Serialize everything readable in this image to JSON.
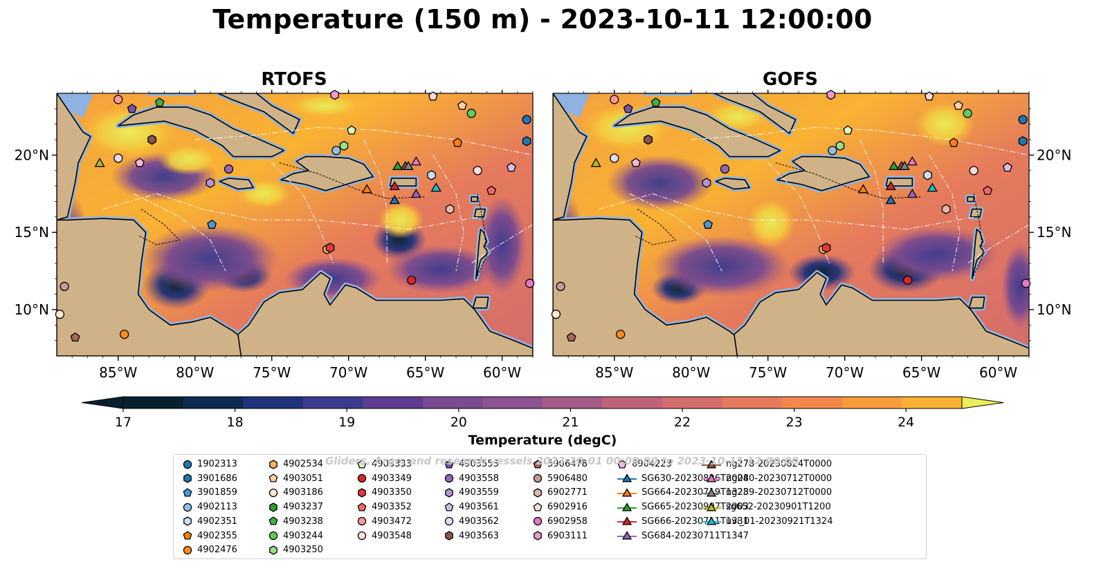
{
  "title": "Temperature (150 m) - 2023-10-11 12:00:00",
  "panels": [
    {
      "name": "RTOFS"
    },
    {
      "name": "GOFS"
    }
  ],
  "axes": {
    "lon_ticks": [
      "85°W",
      "80°W",
      "75°W",
      "70°W",
      "65°W",
      "60°W"
    ],
    "lat_ticks": [
      "20°N",
      "15°N",
      "10°N"
    ],
    "extent": {
      "lon": [
        -89,
        -58
      ],
      "lat": [
        7,
        24
      ]
    }
  },
  "colorbar": {
    "label": "Temperature (degC)",
    "ticks": [
      "17",
      "18",
      "19",
      "20",
      "21",
      "22",
      "23",
      "24"
    ],
    "range": [
      17,
      24.5
    ],
    "colors": [
      "#06202e",
      "#0d2a52",
      "#1f327a",
      "#3a3a8e",
      "#5e3d91",
      "#784a8f",
      "#8d5290",
      "#a55a86",
      "#bf637a",
      "#d36d6b",
      "#e57a5c",
      "#f2884b",
      "#f89d3c",
      "#f9b233",
      "#f3c93e",
      "#e8ef5a"
    ]
  },
  "watermark": "Gliders, Argo, and research vessels 2023-10-01 00:00:00 to 2023-10-11 12:00:00",
  "legend": [
    {
      "label": "1902313",
      "marker": "circle",
      "color": "#1f77b4"
    },
    {
      "label": "3901686",
      "marker": "hexagon",
      "color": "#1f77b4"
    },
    {
      "label": "3901859",
      "marker": "pentagon",
      "color": "#4a9ad4"
    },
    {
      "label": "4902113",
      "marker": "circle",
      "color": "#8ec1e8"
    },
    {
      "label": "4902351",
      "marker": "hexagon",
      "color": "#c6e0f5"
    },
    {
      "label": "4902355",
      "marker": "pentagon",
      "color": "#ff7f0e"
    },
    {
      "label": "4902476",
      "marker": "circle",
      "color": "#ff8c1a"
    },
    {
      "label": "4902534",
      "marker": "hexagon",
      "color": "#ffae5c"
    },
    {
      "label": "4903051",
      "marker": "pentagon",
      "color": "#ffd1a3"
    },
    {
      "label": "4903186",
      "marker": "circle",
      "color": "#ffe6cc"
    },
    {
      "label": "4903237",
      "marker": "hexagon",
      "color": "#2ca02c"
    },
    {
      "label": "4903238",
      "marker": "pentagon",
      "color": "#3cb043"
    },
    {
      "label": "4903244",
      "marker": "circle",
      "color": "#5ccf5c"
    },
    {
      "label": "4903250",
      "marker": "hexagon",
      "color": "#98df8a"
    },
    {
      "label": "4903333",
      "marker": "pentagon",
      "color": "#d8f5c8"
    },
    {
      "label": "4903349",
      "marker": "circle",
      "color": "#d62728"
    },
    {
      "label": "4903350",
      "marker": "hexagon",
      "color": "#e0393a"
    },
    {
      "label": "4903352",
      "marker": "pentagon",
      "color": "#ee6a6a"
    },
    {
      "label": "4903472",
      "marker": "circle",
      "color": "#ff9896"
    },
    {
      "label": "4903548",
      "marker": "circle",
      "color": "#ffdcdc"
    },
    {
      "label": "4903553",
      "marker": "pentagon",
      "color": "#7b52ab"
    },
    {
      "label": "4903558",
      "marker": "circle",
      "color": "#9467bd"
    },
    {
      "label": "4903559",
      "marker": "hexagon",
      "color": "#b296d6"
    },
    {
      "label": "4903561",
      "marker": "pentagon",
      "color": "#d1bdea"
    },
    {
      "label": "4903562",
      "marker": "circle",
      "color": "#e6daf5"
    },
    {
      "label": "4903563",
      "marker": "hexagon",
      "color": "#8c564b"
    },
    {
      "label": "5906478",
      "marker": "pentagon",
      "color": "#a8685a"
    },
    {
      "label": "5906480",
      "marker": "circle",
      "color": "#c49c94"
    },
    {
      "label": "6902771",
      "marker": "hexagon",
      "color": "#e2b8ae"
    },
    {
      "label": "6902916",
      "marker": "pentagon",
      "color": "#f5ded7"
    },
    {
      "label": "6902958",
      "marker": "circle",
      "color": "#e377c2"
    },
    {
      "label": "6903111",
      "marker": "hexagon",
      "color": "#ee99d2"
    },
    {
      "label": "6904223",
      "marker": "pentagon",
      "color": "#f7b6e0"
    },
    {
      "label": "SG630-20230826T2004",
      "marker": "triangle",
      "color": "#1f77b4"
    },
    {
      "label": "SG664-20230719T1323",
      "marker": "triangle",
      "color": "#ff7f0e"
    },
    {
      "label": "SG665-20230907T2003",
      "marker": "triangle",
      "color": "#2ca02c"
    },
    {
      "label": "SG666-20230711T1331",
      "marker": "triangle",
      "color": "#d62728"
    },
    {
      "label": "SG684-20230711T1347",
      "marker": "triangle",
      "color": "#9467bd"
    },
    {
      "label": "ng278-20230824T0000",
      "marker": "triangle",
      "color": "#8c564b"
    },
    {
      "label": "ng280-20230712T0000",
      "marker": "triangle",
      "color": "#e377c2"
    },
    {
      "label": "ng289-20230712T0000",
      "marker": "triangle",
      "color": "#7f7f7f"
    },
    {
      "label": "sg652-20230901T1200",
      "marker": "triangle",
      "color": "#bcbd22"
    },
    {
      "label": "uvi_01-20230921T1324",
      "marker": "triangle",
      "color": "#17becf"
    }
  ],
  "observations": [
    {
      "label": "1902313",
      "lon": -58.4,
      "lat": 22.3
    },
    {
      "label": "3901686",
      "lon": -58.4,
      "lat": 20.9
    },
    {
      "label": "3901859",
      "lon": -78.9,
      "lat": 15.5
    },
    {
      "label": "4902113",
      "lon": -70.8,
      "lat": 20.3
    },
    {
      "label": "4902351",
      "lon": -64.6,
      "lat": 18.7
    },
    {
      "label": "4902355",
      "lon": -62.9,
      "lat": 20.8
    },
    {
      "label": "4902476",
      "lon": -84.6,
      "lat": 8.4
    },
    {
      "label": "4902534",
      "lon": -71.4,
      "lat": 13.9
    },
    {
      "label": "4903051",
      "lon": -62.6,
      "lat": 23.2
    },
    {
      "label": "4903186",
      "lon": -88.8,
      "lat": 9.7
    },
    {
      "label": "4903237",
      "lon": -82.8,
      "lat": 21.0
    },
    {
      "label": "4903238",
      "lon": -82.3,
      "lat": 23.4
    },
    {
      "label": "4903244",
      "lon": -62.0,
      "lat": 22.7
    },
    {
      "label": "4903250",
      "lon": -70.3,
      "lat": 20.6
    },
    {
      "label": "4903333",
      "lon": -69.8,
      "lat": 21.6
    },
    {
      "label": "4903349",
      "lon": -65.9,
      "lat": 11.9
    },
    {
      "label": "4903350",
      "lon": -71.2,
      "lat": 14.0
    },
    {
      "label": "4903352",
      "lon": -60.7,
      "lat": 17.7
    },
    {
      "label": "4903472",
      "lon": -85.0,
      "lat": 23.6
    },
    {
      "label": "4903548",
      "lon": -61.6,
      "lat": 19.0
    },
    {
      "label": "4903553",
      "lon": -84.1,
      "lat": 23.0
    },
    {
      "label": "4903558",
      "lon": -77.8,
      "lat": 19.1
    },
    {
      "label": "4903559",
      "lon": -79.0,
      "lat": 18.2
    },
    {
      "label": "4903561",
      "lon": -59.4,
      "lat": 19.2
    },
    {
      "label": "4903562",
      "lon": -85.0,
      "lat": 19.8
    },
    {
      "label": "4903563",
      "lon": -82.8,
      "lat": 21.0
    },
    {
      "label": "5906478",
      "lon": -87.8,
      "lat": 8.2
    },
    {
      "label": "5906480",
      "lon": -88.5,
      "lat": 11.5
    },
    {
      "label": "6902771",
      "lon": -63.4,
      "lat": 16.5
    },
    {
      "label": "6902916",
      "lon": -64.5,
      "lat": 23.8
    },
    {
      "label": "6902958",
      "lon": -58.2,
      "lat": 11.7
    },
    {
      "label": "6903111",
      "lon": -70.9,
      "lat": 23.9
    },
    {
      "label": "6904223",
      "lon": -83.6,
      "lat": 19.5
    },
    {
      "label": "SG630-20230826T2004",
      "lon": -67.0,
      "lat": 17.1
    },
    {
      "label": "SG664-20230719T1323",
      "lon": -68.8,
      "lat": 17.8
    },
    {
      "label": "SG665-20230907T2003",
      "lon": -66.8,
      "lat": 19.3
    },
    {
      "label": "SG666-20230711T1331",
      "lon": -67.0,
      "lat": 18.0
    },
    {
      "label": "SG684-20230711T1347",
      "lon": -65.6,
      "lat": 17.5
    },
    {
      "label": "ng278-20230824T0000",
      "lon": -66.3,
      "lat": 19.3
    },
    {
      "label": "ng280-20230712T0000",
      "lon": -65.6,
      "lat": 19.6
    },
    {
      "label": "ng289-20230712T0000",
      "lon": -66.1,
      "lat": 19.3
    },
    {
      "label": "sg652-20230901T1200",
      "lon": -86.2,
      "lat": 19.5
    },
    {
      "label": "uvi_01-20230921T1324",
      "lon": -64.3,
      "lat": 17.9
    }
  ]
}
